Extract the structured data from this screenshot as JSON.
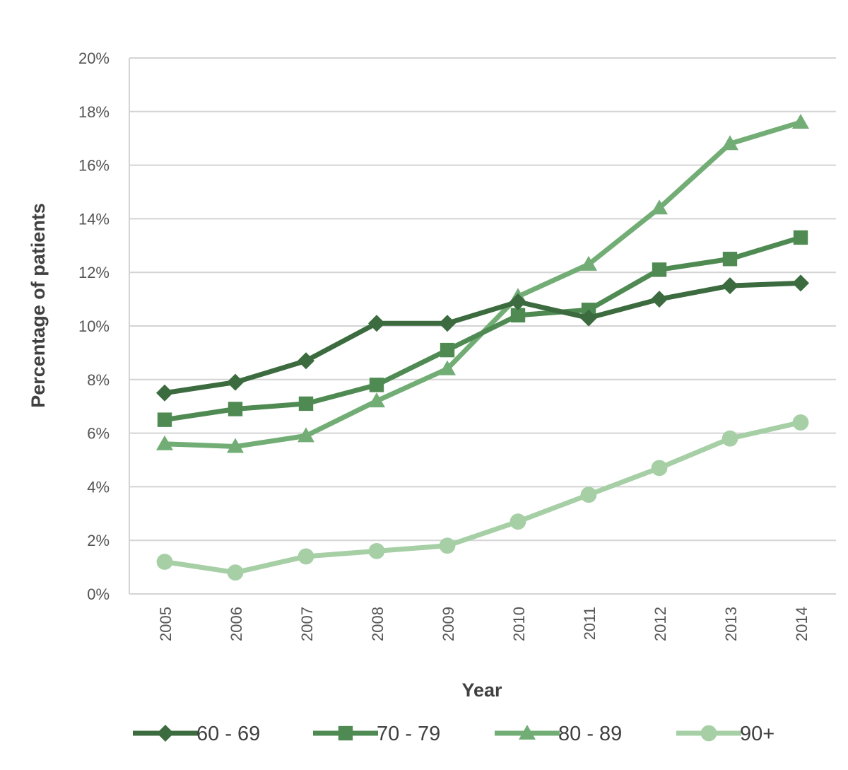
{
  "chart_data": {
    "type": "line",
    "title": "",
    "xlabel": "Year",
    "ylabel": "Percentage of patients",
    "categories": [
      "2005",
      "2006",
      "2007",
      "2008",
      "2009",
      "2010",
      "2011",
      "2012",
      "2013",
      "2014"
    ],
    "ylim": [
      0,
      20
    ],
    "yticks": [
      "0%",
      "2%",
      "4%",
      "6%",
      "8%",
      "10%",
      "12%",
      "14%",
      "16%",
      "18%",
      "20%"
    ],
    "grid": true,
    "legend_position": "bottom",
    "series": [
      {
        "name": "60 - 69",
        "marker": "diamond",
        "color": "#3b6b3e",
        "values": [
          7.5,
          7.9,
          8.7,
          10.1,
          10.1,
          10.9,
          10.3,
          11.0,
          11.5,
          11.6
        ]
      },
      {
        "name": "70 - 79",
        "marker": "square",
        "color": "#4e8a52",
        "values": [
          6.5,
          6.9,
          7.1,
          7.8,
          9.1,
          10.4,
          10.6,
          12.1,
          12.5,
          13.3
        ]
      },
      {
        "name": "80 - 89",
        "marker": "triangle",
        "color": "#72ad75",
        "values": [
          5.6,
          5.5,
          5.9,
          7.2,
          8.4,
          11.1,
          12.3,
          14.4,
          16.8,
          17.6
        ]
      },
      {
        "name": "90+",
        "marker": "circle",
        "color": "#a6cfa6",
        "values": [
          1.2,
          0.8,
          1.4,
          1.6,
          1.8,
          2.7,
          3.7,
          4.7,
          5.8,
          6.4
        ]
      }
    ]
  }
}
